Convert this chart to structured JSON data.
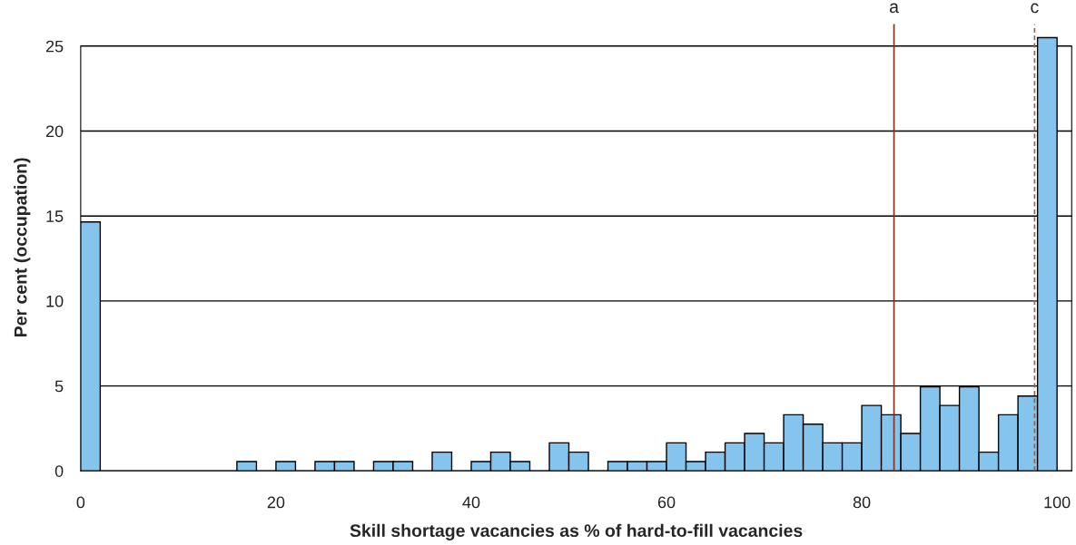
{
  "chart_data": {
    "type": "histogram",
    "xlabel": "Skill shortage vacancies as % of hard-to-fill vacancies",
    "ylabel": "Per cent (occupation)",
    "bins": [
      0,
      2,
      4,
      6,
      8,
      10,
      12,
      14,
      16,
      18,
      20,
      22,
      24,
      26,
      28,
      30,
      32,
      34,
      36,
      38,
      40,
      42,
      44,
      46,
      48,
      50,
      52,
      54,
      56,
      58,
      60,
      62,
      64,
      66,
      68,
      70,
      72,
      74,
      76,
      78,
      80,
      82,
      84,
      86,
      88,
      90,
      92,
      94,
      96,
      98,
      100
    ],
    "values": [
      14.65,
      0,
      0,
      0,
      0,
      0,
      0,
      0,
      0.55,
      0,
      0.55,
      0,
      0.55,
      0.55,
      0,
      0.55,
      0.55,
      0,
      1.1,
      0,
      0.55,
      1.1,
      0.55,
      0,
      1.65,
      1.1,
      0,
      0.55,
      0.55,
      0.55,
      1.65,
      0.55,
      1.1,
      1.65,
      2.2,
      1.65,
      3.3,
      2.75,
      1.65,
      1.65,
      3.85,
      3.3,
      2.2,
      4.95,
      3.85,
      4.95,
      1.1,
      3.3,
      4.4,
      25.5
    ],
    "color": "#85c5ed",
    "xlim": [
      0,
      101.5
    ],
    "ylim": [
      0,
      26.3
    ],
    "xticks": [
      0,
      20,
      40,
      60,
      80,
      100
    ],
    "yticks": [
      0,
      5,
      10,
      15,
      20,
      25
    ],
    "grid": "y",
    "ref_lines": [
      {
        "axis": "x",
        "value": 83.3,
        "label": "a",
        "color": "#8b2e1e",
        "line_style": "solid"
      },
      {
        "axis": "x",
        "value": 97.7,
        "label": "c",
        "color": "#a65a4e",
        "line_style": "dashed"
      }
    ]
  }
}
